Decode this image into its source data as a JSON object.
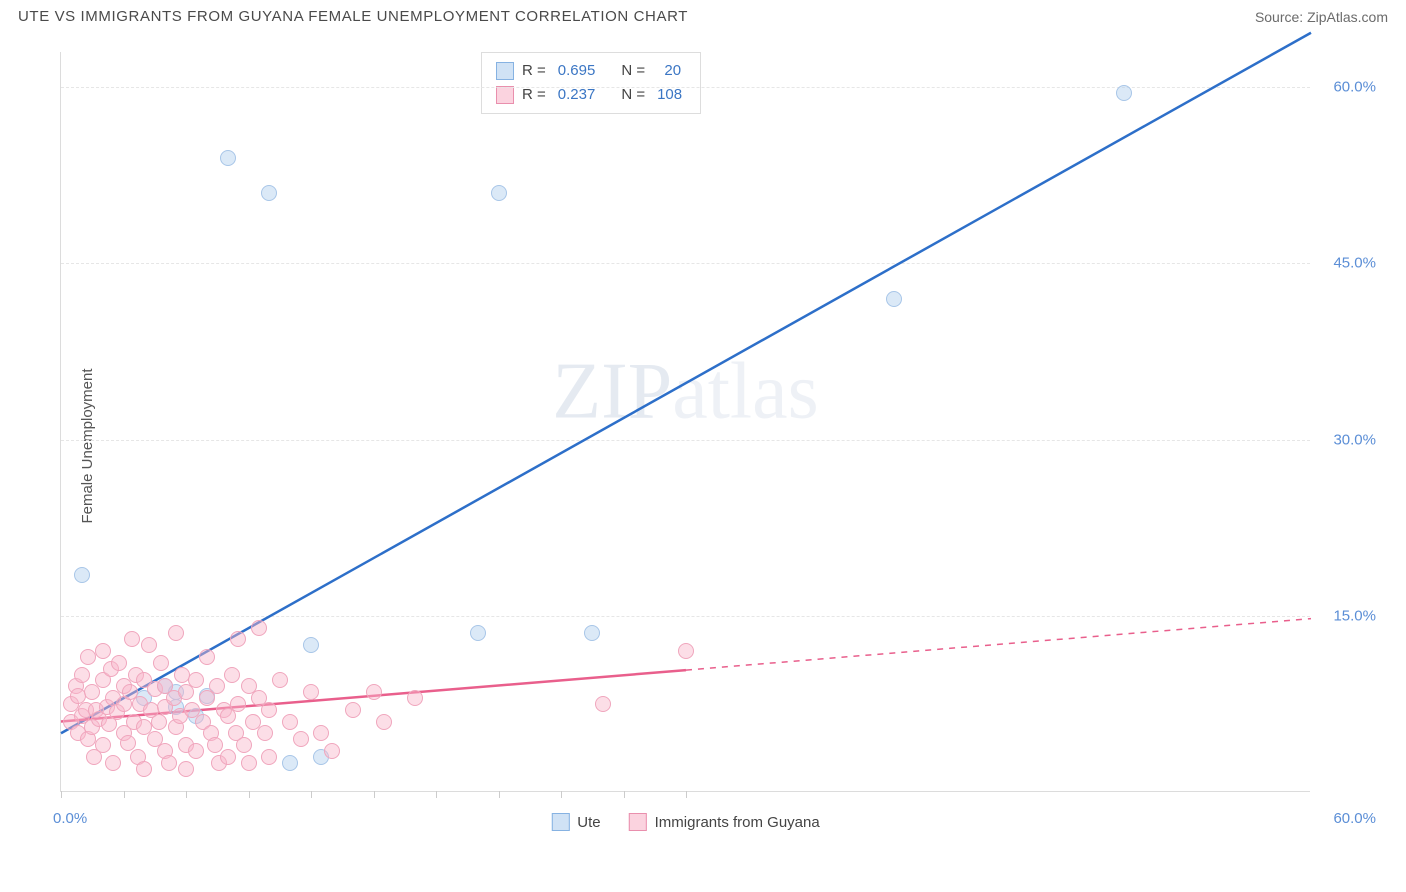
{
  "header": {
    "title": "UTE VS IMMIGRANTS FROM GUYANA FEMALE UNEMPLOYMENT CORRELATION CHART",
    "source": "Source: ZipAtlas.com"
  },
  "ylabel": "Female Unemployment",
  "watermark": {
    "a": "ZIP",
    "b": "atlas"
  },
  "chart": {
    "type": "scatter",
    "xlim": [
      0,
      60
    ],
    "ylim": [
      0,
      63
    ],
    "y_ticks": [
      15,
      30,
      45,
      60
    ],
    "y_tick_labels": [
      "15.0%",
      "30.0%",
      "45.0%",
      "60.0%"
    ],
    "x_origin_label": "0.0%",
    "x_end_label": "60.0%",
    "x_minor_ticks": [
      0,
      3,
      6,
      9,
      12,
      15,
      18,
      21,
      24,
      27,
      30
    ],
    "grid_color": "#e6e6e6",
    "series": [
      {
        "name": "Ute",
        "color_fill": "rgba(176,207,238,0.45)",
        "color_stroke": "#a8c6e8",
        "line_color": "#2d6fc9",
        "line_width": 2.5,
        "line_dash": "none",
        "line_x_range": [
          0,
          60
        ],
        "regression": {
          "slope": 0.994,
          "intercept": 5.0
        },
        "R": "0.695",
        "N": "20",
        "points": [
          [
            1.0,
            18.5
          ],
          [
            4.0,
            8.0
          ],
          [
            5.0,
            9.0
          ],
          [
            5.5,
            8.5
          ],
          [
            5.5,
            7.2
          ],
          [
            6.5,
            6.5
          ],
          [
            7.0,
            8.2
          ],
          [
            8.0,
            54.0
          ],
          [
            10.0,
            51.0
          ],
          [
            11.0,
            2.5
          ],
          [
            12.0,
            12.5
          ],
          [
            12.5,
            3.0
          ],
          [
            20.0,
            13.5
          ],
          [
            21.0,
            51.0
          ],
          [
            25.5,
            13.5
          ],
          [
            40.0,
            42.0
          ],
          [
            51.0,
            59.5
          ]
        ]
      },
      {
        "name": "Immigrants from Guyana",
        "color_fill": "rgba(248,182,201,0.45)",
        "color_stroke": "#f0a6bd",
        "line_color": "#e95f8c",
        "line_width": 2.5,
        "line_dash_solid_until": 30,
        "line_dash": "6,6",
        "regression": {
          "slope": 0.146,
          "intercept": 6.0
        },
        "R": "0.237",
        "N": "108",
        "points": [
          [
            0.5,
            6.0
          ],
          [
            0.5,
            7.5
          ],
          [
            0.7,
            9.0
          ],
          [
            0.8,
            5.0
          ],
          [
            0.8,
            8.2
          ],
          [
            1.0,
            6.5
          ],
          [
            1.0,
            10.0
          ],
          [
            1.2,
            7.0
          ],
          [
            1.3,
            4.5
          ],
          [
            1.3,
            11.5
          ],
          [
            1.5,
            5.5
          ],
          [
            1.5,
            8.5
          ],
          [
            1.6,
            3.0
          ],
          [
            1.7,
            7.0
          ],
          [
            1.8,
            6.2
          ],
          [
            2.0,
            9.5
          ],
          [
            2.0,
            4.0
          ],
          [
            2.0,
            12.0
          ],
          [
            2.2,
            7.2
          ],
          [
            2.3,
            5.8
          ],
          [
            2.4,
            10.5
          ],
          [
            2.5,
            8.0
          ],
          [
            2.5,
            2.5
          ],
          [
            2.7,
            6.8
          ],
          [
            2.8,
            11.0
          ],
          [
            3.0,
            5.0
          ],
          [
            3.0,
            9.0
          ],
          [
            3.0,
            7.5
          ],
          [
            3.2,
            4.2
          ],
          [
            3.3,
            8.5
          ],
          [
            3.4,
            13.0
          ],
          [
            3.5,
            6.0
          ],
          [
            3.6,
            10.0
          ],
          [
            3.7,
            3.0
          ],
          [
            3.8,
            7.5
          ],
          [
            4.0,
            9.5
          ],
          [
            4.0,
            5.5
          ],
          [
            4.0,
            2.0
          ],
          [
            4.2,
            12.5
          ],
          [
            4.3,
            7.0
          ],
          [
            4.5,
            8.8
          ],
          [
            4.5,
            4.5
          ],
          [
            4.7,
            6.0
          ],
          [
            4.8,
            11.0
          ],
          [
            5.0,
            3.5
          ],
          [
            5.0,
            9.0
          ],
          [
            5.0,
            7.2
          ],
          [
            5.2,
            2.5
          ],
          [
            5.4,
            8.0
          ],
          [
            5.5,
            5.5
          ],
          [
            5.5,
            13.5
          ],
          [
            5.7,
            6.5
          ],
          [
            5.8,
            10.0
          ],
          [
            6.0,
            4.0
          ],
          [
            6.0,
            8.5
          ],
          [
            6.0,
            2.0
          ],
          [
            6.3,
            7.0
          ],
          [
            6.5,
            9.5
          ],
          [
            6.5,
            3.5
          ],
          [
            6.8,
            6.0
          ],
          [
            7.0,
            8.0
          ],
          [
            7.0,
            11.5
          ],
          [
            7.2,
            5.0
          ],
          [
            7.4,
            4.0
          ],
          [
            7.5,
            9.0
          ],
          [
            7.6,
            2.5
          ],
          [
            7.8,
            7.0
          ],
          [
            8.0,
            6.5
          ],
          [
            8.0,
            3.0
          ],
          [
            8.2,
            10.0
          ],
          [
            8.4,
            5.0
          ],
          [
            8.5,
            13.0
          ],
          [
            8.5,
            7.5
          ],
          [
            8.8,
            4.0
          ],
          [
            9.0,
            9.0
          ],
          [
            9.0,
            2.5
          ],
          [
            9.2,
            6.0
          ],
          [
            9.5,
            8.0
          ],
          [
            9.5,
            14.0
          ],
          [
            9.8,
            5.0
          ],
          [
            10.0,
            7.0
          ],
          [
            10.0,
            3.0
          ],
          [
            10.5,
            9.5
          ],
          [
            11.0,
            6.0
          ],
          [
            11.5,
            4.5
          ],
          [
            12.0,
            8.5
          ],
          [
            12.5,
            5.0
          ],
          [
            13.0,
            3.5
          ],
          [
            14.0,
            7.0
          ],
          [
            15.0,
            8.5
          ],
          [
            15.5,
            6.0
          ],
          [
            17.0,
            8.0
          ],
          [
            26.0,
            7.5
          ],
          [
            30.0,
            12.0
          ]
        ]
      }
    ]
  },
  "legend_top": {
    "rows": [
      {
        "swatch": "blue",
        "R_label": "R =",
        "R": "0.695",
        "N_label": "N =",
        "N": "20"
      },
      {
        "swatch": "pink",
        "R_label": "R =",
        "R": "0.237",
        "N_label": "N =",
        "N": "108"
      }
    ]
  },
  "legend_bottom": {
    "items": [
      {
        "swatch": "blue",
        "label": "Ute"
      },
      {
        "swatch": "pink",
        "label": "Immigrants from Guyana"
      }
    ]
  }
}
